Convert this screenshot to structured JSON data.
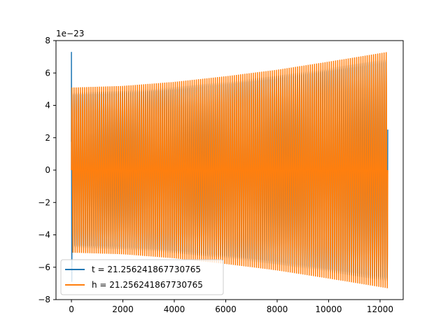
{
  "chart_data": {
    "type": "line",
    "title": "",
    "xlabel": "",
    "ylabel": "",
    "y_offset_text": "1e−23",
    "xlim": [
      -600,
      12900
    ],
    "ylim": [
      -8,
      8
    ],
    "y_unit_scale": 1e-23,
    "x_ticks": [
      0,
      2000,
      4000,
      6000,
      8000,
      10000,
      12000
    ],
    "x_tick_labels": [
      "0",
      "2000",
      "4000",
      "6000",
      "8000",
      "10000",
      "12000"
    ],
    "y_ticks": [
      -8,
      -6,
      -4,
      -2,
      0,
      2,
      4,
      6,
      8
    ],
    "y_tick_labels": [
      "−8",
      "−6",
      "−4",
      "−2",
      "0",
      "2",
      "4",
      "6",
      "8"
    ],
    "grid": false,
    "legend_position": "lower-left",
    "series": [
      {
        "name": "t = 21.256241867730765",
        "color": "#1f77b4",
        "x_range": [
          0,
          12300
        ],
        "cycles": 150,
        "envelope_x": [
          0,
          2000,
          4000,
          6000,
          8000,
          10000,
          12300
        ],
        "envelope_amplitude": [
          5.1,
          5.2,
          5.45,
          5.8,
          6.2,
          6.7,
          7.3
        ],
        "initial_spike_max": 7.3,
        "initial_spike_min": -6.9
      },
      {
        "name": "h = 21.256241867730765",
        "color": "#ff7f0e",
        "x_range": [
          0,
          12300
        ],
        "cycles": 150,
        "envelope_x": [
          0,
          2000,
          4000,
          6000,
          8000,
          10000,
          12300
        ],
        "envelope_amplitude": [
          5.1,
          5.2,
          5.45,
          5.8,
          6.2,
          6.7,
          7.3
        ]
      }
    ]
  }
}
